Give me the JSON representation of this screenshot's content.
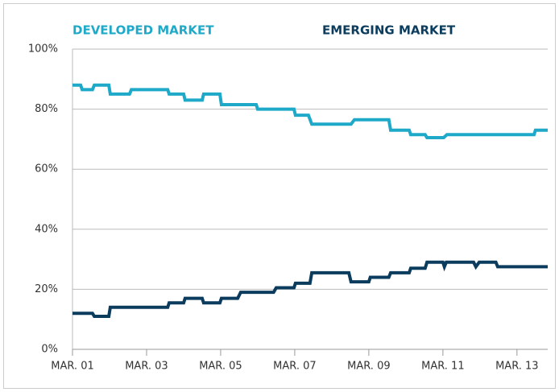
{
  "chart_data": {
    "type": "line",
    "series": [
      {
        "name": "DEVELOPED MARKET",
        "color": "#1fa9c9",
        "x": [
          2001.0,
          2001.22,
          2001.26,
          2001.54,
          2001.59,
          2001.98,
          2002.02,
          2002.54,
          2002.59,
          2003.57,
          2003.61,
          2004.0,
          2004.04,
          2004.5,
          2004.54,
          2004.98,
          2005.02,
          2005.96,
          2006.0,
          2006.98,
          2007.02,
          2007.37,
          2007.46,
          2008.52,
          2008.61,
          2009.54,
          2009.59,
          2010.09,
          2010.13,
          2010.52,
          2010.57,
          2011.02,
          2011.11,
          2013.46,
          2013.5,
          2013.83
        ],
        "values": [
          88,
          88,
          86.5,
          86.5,
          88,
          88,
          85,
          85,
          86.5,
          86.5,
          85,
          85,
          83,
          83,
          85,
          85,
          81.5,
          81.5,
          80,
          80,
          78,
          78,
          75,
          75,
          76.5,
          76.5,
          73,
          73,
          71.5,
          71.5,
          70.5,
          70.5,
          71.5,
          71.5,
          73,
          73
        ]
      },
      {
        "name": "EMERGING MARKET",
        "color": "#0b3c5d",
        "x": [
          2001.0,
          2001.54,
          2001.59,
          2001.98,
          2002.02,
          2003.57,
          2003.61,
          2004.0,
          2004.04,
          2004.5,
          2004.54,
          2004.98,
          2005.02,
          2005.46,
          2005.54,
          2006.43,
          2006.5,
          2006.98,
          2007.02,
          2007.41,
          2007.46,
          2008.46,
          2008.52,
          2009.0,
          2009.04,
          2009.54,
          2009.59,
          2010.09,
          2010.13,
          2010.52,
          2010.57,
          2011.0,
          2011.04,
          2011.09,
          2011.83,
          2011.89,
          2011.98,
          2012.43,
          2012.48,
          2013.83
        ],
        "values": [
          12,
          12,
          11,
          11,
          14,
          14,
          15.5,
          15.5,
          17,
          17,
          15.5,
          15.5,
          17,
          17,
          19,
          19,
          20.5,
          20.5,
          22,
          22,
          25.5,
          25.5,
          22.5,
          22.5,
          24,
          24,
          25.5,
          25.5,
          27,
          27,
          29,
          29,
          27.5,
          29,
          29,
          27.5,
          29,
          29,
          27.5,
          27.5
        ]
      }
    ],
    "xlim": [
      2001,
      2013.83
    ],
    "xticks": [
      {
        "value": 2001,
        "label": "MAR. 01"
      },
      {
        "value": 2003,
        "label": "MAR. 03"
      },
      {
        "value": 2005,
        "label": "MAR. 05"
      },
      {
        "value": 2007,
        "label": "MAR. 07"
      },
      {
        "value": 2009,
        "label": "MAR. 09"
      },
      {
        "value": 2011,
        "label": "MAR. 11"
      },
      {
        "value": 2013,
        "label": "MAR. 13"
      }
    ],
    "ylim": [
      0,
      100
    ],
    "yticks": [
      {
        "value": 0,
        "label": "0%"
      },
      {
        "value": 20,
        "label": "20%"
      },
      {
        "value": 40,
        "label": "40%"
      },
      {
        "value": 60,
        "label": "60%"
      },
      {
        "value": 80,
        "label": "80%"
      },
      {
        "value": 100,
        "label": "100%"
      }
    ],
    "grid": true
  }
}
